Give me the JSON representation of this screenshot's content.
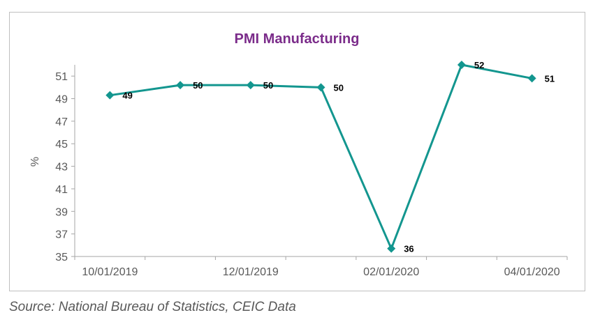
{
  "chart_data": {
    "type": "line",
    "title": "PMI Manufacturing",
    "xlabel": "",
    "ylabel": "%",
    "x": [
      "10/01/2019",
      "11/01/2019",
      "12/01/2019",
      "01/01/2020",
      "02/01/2020",
      "03/01/2020",
      "04/01/2020"
    ],
    "x_tick_labels": [
      "10/01/2019",
      "12/01/2019",
      "02/01/2020",
      "04/01/2020"
    ],
    "series": [
      {
        "values": [
          49.3,
          50.2,
          50.2,
          50.0,
          35.7,
          52.0,
          50.8
        ],
        "data_labels": [
          "49",
          "50",
          "50",
          "50",
          "36",
          "52",
          "51"
        ],
        "color": "#13968F",
        "marker": "diamond"
      }
    ],
    "ylim": [
      35,
      52
    ],
    "y_ticks": [
      35,
      37,
      39,
      41,
      43,
      45,
      47,
      49,
      51
    ],
    "grid": false,
    "legend": "none",
    "title_color": "#7B2C8A"
  },
  "source": "Source: National Bureau of Statistics, CEIC Data"
}
